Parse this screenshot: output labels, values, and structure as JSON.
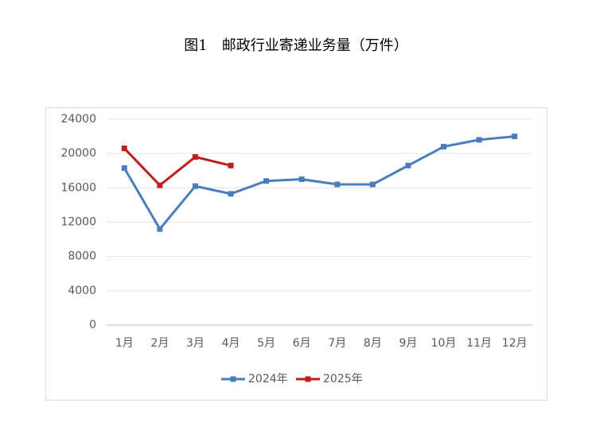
{
  "chart_data": {
    "type": "line",
    "title": "图1　邮政行业寄递业务量（万件）",
    "categories": [
      "1月",
      "2月",
      "3月",
      "4月",
      "5月",
      "6月",
      "7月",
      "8月",
      "9月",
      "10月",
      "11月",
      "12月"
    ],
    "series": [
      {
        "name": "2024年",
        "color": "#4a7ebb",
        "values": [
          18300,
          11200,
          16200,
          15300,
          16800,
          17000,
          16400,
          16400,
          18600,
          20800,
          21600,
          22000
        ]
      },
      {
        "name": "2025年",
        "color": "#be1e1e",
        "values": [
          20600,
          16300,
          19600,
          18600,
          null,
          null,
          null,
          null,
          null,
          null,
          null,
          null
        ]
      }
    ],
    "ylim": [
      0,
      24000
    ],
    "yticks": [
      0,
      4000,
      8000,
      12000,
      16000,
      20000,
      24000
    ],
    "grid": true,
    "legend": "bottom"
  }
}
